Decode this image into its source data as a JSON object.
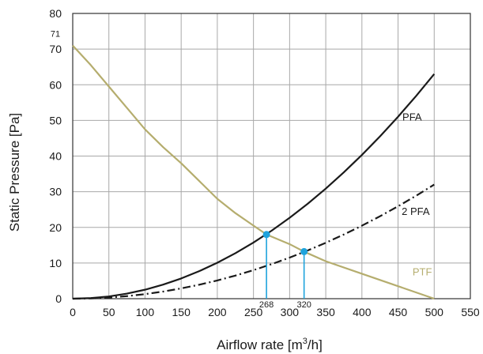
{
  "chart_data": {
    "type": "line",
    "xlabel_main": "Airflow rate [m",
    "xlabel_sup": "3",
    "xlabel_end": "/h]",
    "ylabel": "Static Pressure [Pa]",
    "xlim": [
      0,
      550
    ],
    "ylim": [
      0,
      80
    ],
    "x_ticks": [
      "0",
      "50",
      "100",
      "150",
      "200",
      "250",
      "300",
      "350",
      "400",
      "450",
      "500",
      "550"
    ],
    "y_ticks": [
      "0",
      "10",
      "20",
      "30",
      "40",
      "50",
      "60",
      "70",
      "80"
    ],
    "grid": true,
    "series": [
      {
        "name": "PFA",
        "color": "#1a1a1a",
        "dash": "solid",
        "x": [
          0,
          25,
          50,
          75,
          100,
          125,
          150,
          175,
          200,
          225,
          250,
          275,
          300,
          325,
          350,
          375,
          400,
          425,
          450,
          475,
          500
        ],
        "y": [
          0,
          0.16,
          0.63,
          1.42,
          2.52,
          3.94,
          5.67,
          7.72,
          10.08,
          12.76,
          15.75,
          19.06,
          22.68,
          26.62,
          30.87,
          35.44,
          40.32,
          45.52,
          51.03,
          56.86,
          63.0
        ]
      },
      {
        "name": "2 PFA",
        "color": "#1a1a1a",
        "dash": "dashdot",
        "x": [
          0,
          25,
          50,
          75,
          100,
          125,
          150,
          175,
          200,
          225,
          250,
          275,
          300,
          325,
          350,
          375,
          400,
          425,
          450,
          475,
          500
        ],
        "y": [
          0,
          0.08,
          0.32,
          0.72,
          1.28,
          2.0,
          2.88,
          3.92,
          5.12,
          6.48,
          8.0,
          9.68,
          11.52,
          13.52,
          15.68,
          18.0,
          20.48,
          23.12,
          25.92,
          28.88,
          32.0
        ]
      },
      {
        "name": "PTF",
        "color": "#b5ad6e",
        "dash": "solid",
        "x": [
          0,
          25,
          50,
          75,
          100,
          125,
          150,
          175,
          200,
          225,
          250,
          268,
          300,
          320,
          350,
          400,
          450,
          500
        ],
        "y": [
          71,
          65.5,
          59.5,
          53.5,
          47.5,
          42.5,
          38.0,
          33.0,
          28.0,
          24.0,
          20.5,
          18.0,
          15.3,
          13.2,
          10.5,
          7.0,
          3.5,
          0
        ]
      }
    ],
    "operating_points": [
      {
        "x": 268,
        "y": 18,
        "label": "268"
      },
      {
        "x": 320,
        "y": 13.2,
        "label": "320"
      }
    ],
    "annotations": [
      {
        "text": "PFA",
        "x": 456,
        "y": 50,
        "color": "#1a1a1a"
      },
      {
        "text": "2 PFA",
        "x": 455,
        "y": 23.5,
        "color": "#1a1a1a"
      },
      {
        "text": "PTF",
        "x": 470,
        "y": 6.5,
        "color": "#b5ad6e"
      },
      {
        "text": "71",
        "x": -8,
        "y": 73,
        "color": "#1a1a1a"
      }
    ],
    "marker_color": "#1ea3dc"
  }
}
